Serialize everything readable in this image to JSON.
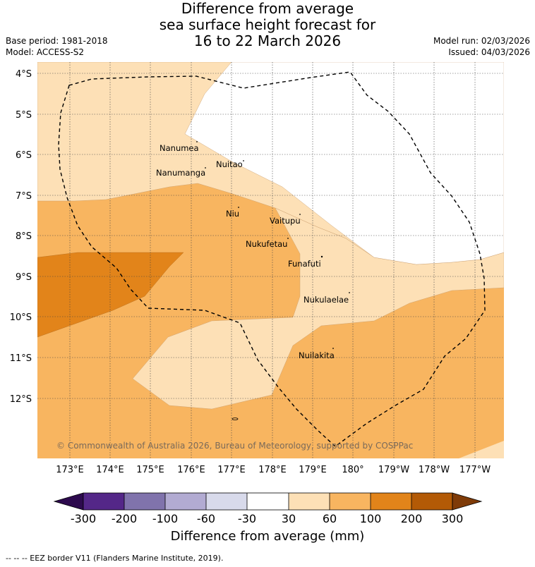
{
  "header": {
    "title_lines": [
      "Difference from average",
      "sea surface height forecast for",
      "16 to 22 March 2026"
    ],
    "base_period": "Base period: 1981-2018",
    "model": "Model: ACCESS-S2",
    "model_run": "Model run: 02/03/2026",
    "issued": "Issued: 04/03/2026"
  },
  "map": {
    "lat_labels": [
      "4°S",
      "5°S",
      "6°S",
      "7°S",
      "8°S",
      "9°S",
      "10°S",
      "11°S",
      "12°S"
    ],
    "lon_labels": [
      "173°E",
      "174°E",
      "175°E",
      "176°E",
      "177°E",
      "178°E",
      "179°E",
      "180°",
      "179°W",
      "178°W",
      "177°W"
    ],
    "islands": [
      "Nanumea",
      "Nuitao",
      "Nanumanga",
      "Niu",
      "Vaitupu",
      "Nukufetau",
      "Funafuti",
      "Nukulaelae",
      "Nuilakita"
    ],
    "copyright": "© Commonwealth of Australia 2026, Bureau of Meteorology, supported by COSPPac",
    "colors": {
      "c30_60": "#fde0b6",
      "c60_100": "#f8b560",
      "c100_200": "#e2841a",
      "c200_300": "#b35a06",
      "c300_plus": "#7f3b08",
      "neg300": "#2d0a4e",
      "n300_200": "#542788",
      "n200_100": "#8073ac",
      "n100_60": "#b2abd2",
      "n60_30": "#d8daeb",
      "n30_30": "#ffffff"
    }
  },
  "colorbar": {
    "ticks": [
      "-300",
      "-200",
      "-100",
      "-60",
      "-30",
      "30",
      "60",
      "100",
      "200",
      "300"
    ],
    "title": "Difference from average (mm)"
  },
  "footer": "--  --  -- EEZ border V11 (Flanders Marine Institute, 2019)."
}
